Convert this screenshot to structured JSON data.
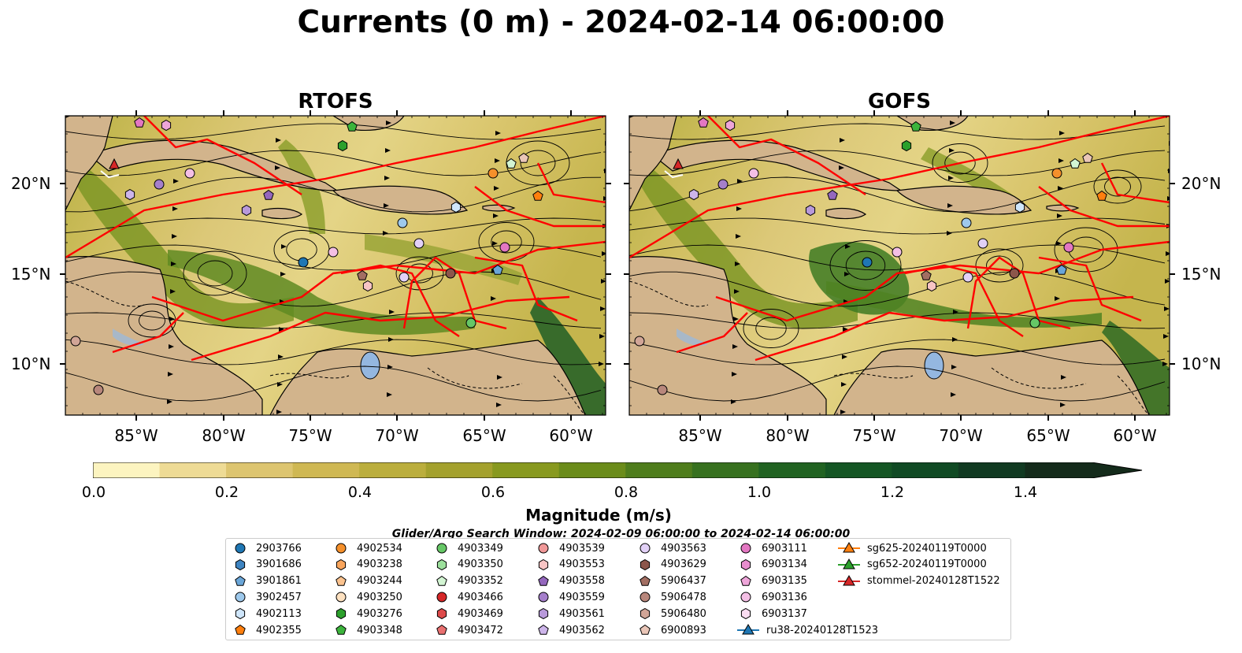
{
  "title": "Currents (0 m) - 2024-02-14 06:00:00",
  "panels": [
    {
      "name": "RTOFS"
    },
    {
      "name": "GOFS"
    }
  ],
  "lat_labels": [
    "20°N",
    "15°N",
    "10°N"
  ],
  "lon_labels": [
    "85°W",
    "80°W",
    "75°W",
    "70°W",
    "65°W",
    "60°W"
  ],
  "colorbar": {
    "label": "Magnitude (m/s)",
    "ticks": [
      "0.0",
      "0.2",
      "0.4",
      "0.6",
      "0.8",
      "1.0",
      "1.2",
      "1.4"
    ],
    "range": [
      0.0,
      1.5
    ],
    "colors": [
      "#fcf4c0",
      "#eedb95",
      "#ddc570",
      "#cfb853",
      "#bbae3d",
      "#a4a12d",
      "#88991f",
      "#6b8c1a",
      "#4f7d1c",
      "#37711f",
      "#216322",
      "#145624",
      "#104a24",
      "#113a22",
      "#142b1b"
    ]
  },
  "colors": {
    "land": "#d2b48c",
    "lake": "#94b7e0",
    "tracks": "#ff0000",
    "streamlines": "#000000"
  },
  "search_window": "Glider/Argo Search Window: 2024-02-09 06:00:00 to 2024-02-14 06:00:00",
  "legend": [
    {
      "label": "2903766",
      "marker": "circle",
      "color": "#1f77b4"
    },
    {
      "label": "3901686",
      "marker": "hexagon",
      "color": "#3e84c1"
    },
    {
      "label": "3901861",
      "marker": "pentagon",
      "color": "#6aa6d8"
    },
    {
      "label": "3902457",
      "marker": "circle",
      "color": "#9ec9ec"
    },
    {
      "label": "4902113",
      "marker": "hexagon",
      "color": "#cfe6fb"
    },
    {
      "label": "4902355",
      "marker": "pentagon",
      "color": "#ff7f0e"
    },
    {
      "label": "4902534",
      "marker": "circle",
      "color": "#f5902b"
    },
    {
      "label": "4903238",
      "marker": "hexagon",
      "color": "#f9a55c"
    },
    {
      "label": "4903244",
      "marker": "pentagon",
      "color": "#fbc38f"
    },
    {
      "label": "4903250",
      "marker": "circle",
      "color": "#fde1c0"
    },
    {
      "label": "4903276",
      "marker": "hexagon",
      "color": "#2ca02c"
    },
    {
      "label": "4903348",
      "marker": "pentagon",
      "color": "#3cb43c"
    },
    {
      "label": "4903349",
      "marker": "circle",
      "color": "#66c766"
    },
    {
      "label": "4903350",
      "marker": "hexagon",
      "color": "#9ce09c"
    },
    {
      "label": "4903352",
      "marker": "pentagon",
      "color": "#d3f5d3"
    },
    {
      "label": "4903466",
      "marker": "circle",
      "color": "#d62728"
    },
    {
      "label": "4903469",
      "marker": "hexagon",
      "color": "#dd4a4a"
    },
    {
      "label": "4903472",
      "marker": "pentagon",
      "color": "#e97070"
    },
    {
      "label": "4903539",
      "marker": "circle",
      "color": "#f09898"
    },
    {
      "label": "4903553",
      "marker": "hexagon",
      "color": "#f8c4c4"
    },
    {
      "label": "4903558",
      "marker": "pentagon",
      "color": "#9467bd"
    },
    {
      "label": "4903559",
      "marker": "circle",
      "color": "#a57fcb"
    },
    {
      "label": "4903561",
      "marker": "hexagon",
      "color": "#b899da"
    },
    {
      "label": "4903562",
      "marker": "pentagon",
      "color": "#cdb5ea"
    },
    {
      "label": "4903563",
      "marker": "circle",
      "color": "#e2d1f7"
    },
    {
      "label": "4903629",
      "marker": "hexagon",
      "color": "#8c564b"
    },
    {
      "label": "5906437",
      "marker": "pentagon",
      "color": "#a26e62"
    },
    {
      "label": "5906478",
      "marker": "circle",
      "color": "#b8877c"
    },
    {
      "label": "5906480",
      "marker": "hexagon",
      "color": "#d1a597"
    },
    {
      "label": "6900893",
      "marker": "pentagon",
      "color": "#eac6b8"
    },
    {
      "label": "6903111",
      "marker": "circle",
      "color": "#e377c2"
    },
    {
      "label": "6903134",
      "marker": "hexagon",
      "color": "#e88dce"
    },
    {
      "label": "6903135",
      "marker": "pentagon",
      "color": "#eea5d9"
    },
    {
      "label": "6903136",
      "marker": "circle",
      "color": "#f4bfe5"
    },
    {
      "label": "6903137",
      "marker": "hexagon",
      "color": "#fadcf1"
    },
    {
      "label": "ru38-20240128T1523",
      "marker": "triangle-line",
      "color": "#1f77b4"
    },
    {
      "label": "sg625-20240119T0000",
      "marker": "triangle-line",
      "color": "#ff7f0e"
    },
    {
      "label": "sg652-20240119T0000",
      "marker": "triangle-line",
      "color": "#2ca02c"
    },
    {
      "label": "stommel-20240128T1522",
      "marker": "triangle-line",
      "color": "#d62728"
    }
  ]
}
